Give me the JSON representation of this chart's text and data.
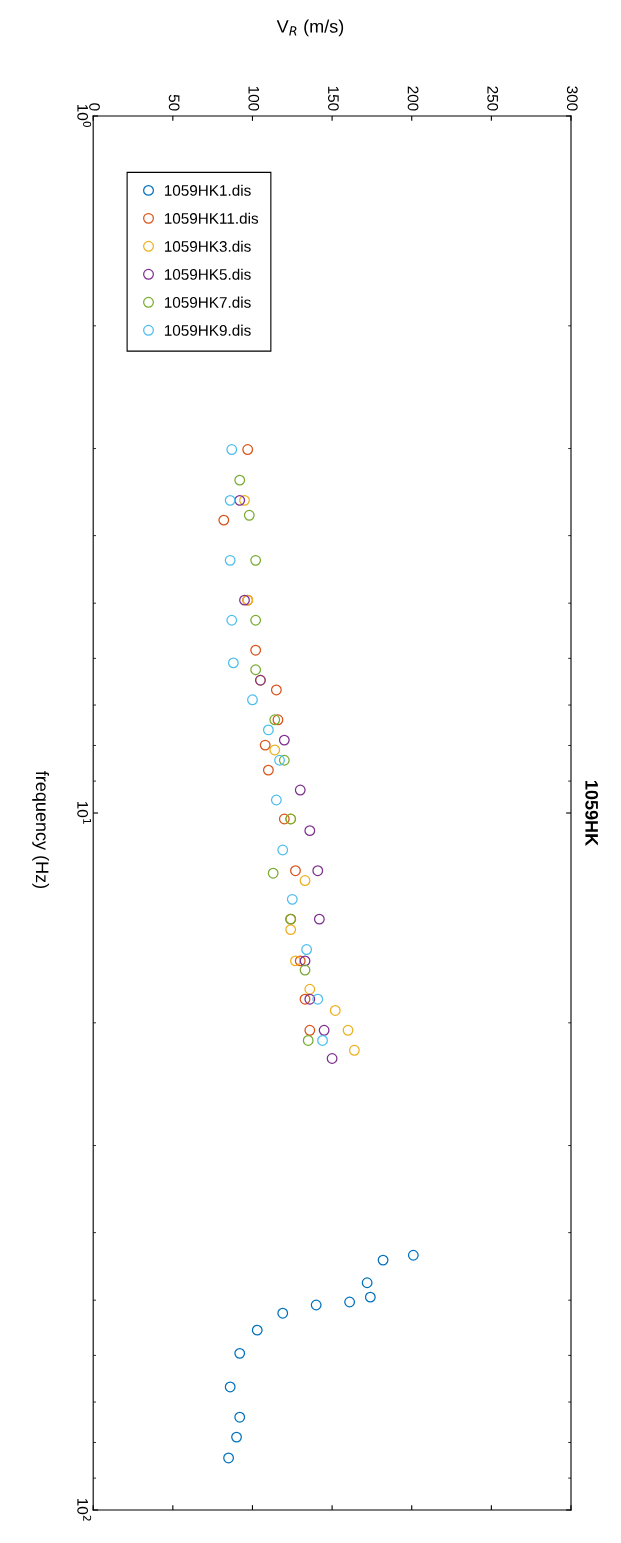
{
  "chart_data": {
    "type": "scatter",
    "title": "1059HK",
    "xlabel": "V$_{R}$ (m/s)",
    "ylabel": "frequency (Hz)",
    "log": "y",
    "marker": "circle",
    "legend": "top left",
    "xlim": [
      0,
      300
    ],
    "xticks": [
      0,
      50,
      100,
      150,
      200,
      250,
      300
    ],
    "ylim": [
      100,
      1
    ],
    "yticks": [
      {
        "value": 1,
        "label": "10$^{0}$"
      },
      {
        "value": 10,
        "label": "10$^{1}$"
      },
      {
        "value": 100,
        "label": "10$^{2}$"
      }
    ],
    "series": [
      {
        "name": "1059HK1.dis",
        "color": "#0072bd",
        "x": [
          201,
          182,
          172,
          174,
          161,
          140,
          119,
          103,
          92,
          86,
          92,
          90,
          85
        ],
        "values": [
          43.1,
          43.8,
          47.2,
          49.5,
          50.3,
          50.8,
          52.2,
          55.2,
          59.6,
          66.6,
          73.6,
          78.6,
          84.2
        ]
      },
      {
        "name": "1059HK11.dis",
        "color": "#d95319",
        "x": [
          97,
          82,
          97,
          102,
          115,
          116,
          108,
          110,
          120,
          127,
          124,
          130,
          133,
          136
        ],
        "values": [
          3.01,
          3.8,
          4.95,
          5.84,
          6.66,
          7.35,
          7.99,
          8.68,
          10.2,
          12.1,
          14.2,
          16.3,
          18.5,
          20.5
        ]
      },
      {
        "name": "1059HK3.dis",
        "color": "#edb120",
        "x": [
          95,
          97,
          105,
          114,
          124,
          133,
          124,
          127,
          136,
          152,
          160,
          164
        ],
        "values": [
          3.56,
          4.95,
          6.45,
          8.12,
          10.2,
          12.5,
          14.7,
          16.3,
          17.9,
          19.2,
          20.5,
          21.9
        ]
      },
      {
        "name": "1059HK5.dis",
        "color": "#7e2f8e",
        "x": [
          92,
          95,
          105,
          120,
          130,
          136,
          141,
          142,
          133,
          136,
          145,
          150
        ],
        "values": [
          3.56,
          4.95,
          6.45,
          7.86,
          9.27,
          10.6,
          12.1,
          14.2,
          16.3,
          18.5,
          20.5,
          22.5
        ]
      },
      {
        "name": "1059HK7.dis",
        "color": "#77ac30",
        "x": [
          92,
          98,
          102,
          102,
          102,
          114,
          120,
          124,
          113,
          124,
          133,
          135
        ],
        "values": [
          3.33,
          3.74,
          4.34,
          5.29,
          6.23,
          7.35,
          8.4,
          10.2,
          12.2,
          14.2,
          16.8,
          21.2
        ]
      },
      {
        "name": "1059HK9.dis",
        "color": "#4dbeee",
        "x": [
          87,
          86,
          86,
          87,
          88,
          100,
          110,
          117,
          115,
          119,
          125,
          134,
          141,
          144
        ],
        "values": [
          3.01,
          3.56,
          4.34,
          5.29,
          6.09,
          6.88,
          7.6,
          8.4,
          9.58,
          11.3,
          13.3,
          15.7,
          18.5,
          21.2
        ]
      }
    ]
  }
}
